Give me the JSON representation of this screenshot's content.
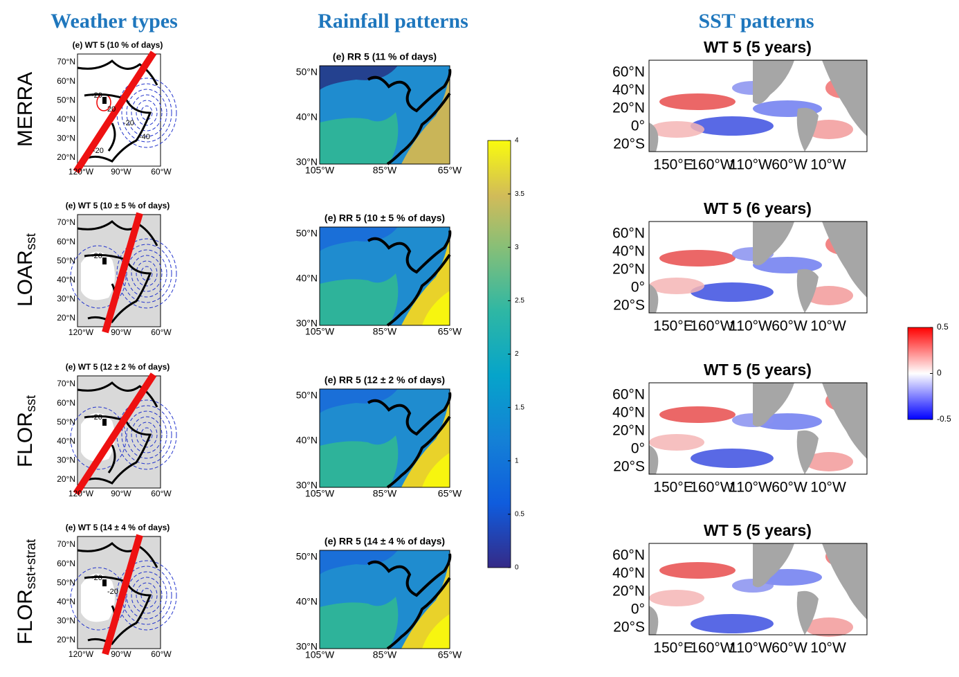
{
  "column_titles": [
    "Weather types",
    "Rainfall patterns",
    "SST patterns"
  ],
  "rows": [
    {
      "name": "MERRA"
    },
    {
      "name": "LOAR",
      "subscript": "sst"
    },
    {
      "name": "FLOR",
      "subscript": "sst"
    },
    {
      "name": "FLOR",
      "subscript": "sst+strat"
    }
  ],
  "weather_types": {
    "lat_labels": [
      "70°N",
      "60°N",
      "50°N",
      "40°N",
      "30°N",
      "20°N"
    ],
    "lon_labels": [
      "120°W",
      "90°W",
      "60°W"
    ],
    "panels": [
      {
        "title": "(e) WT 5  (10 % of days)",
        "contour_labels": [
          "-20",
          "20",
          "-20",
          "-40",
          "-20"
        ]
      },
      {
        "title": "(e) WT 5  (10 ± 5 % of days)",
        "contour_labels": [
          "-20"
        ]
      },
      {
        "title": "(e) WT 5  (12 ± 2 % of days)",
        "contour_labels": [
          "-20"
        ]
      },
      {
        "title": "(e) WT 5  (14 ± 4 % of days)",
        "contour_labels": [
          "-20",
          "-20"
        ]
      }
    ]
  },
  "rainfall": {
    "lat_labels": [
      "50°N",
      "40°N",
      "30°N"
    ],
    "lon_labels": [
      "105°W",
      "85°W",
      "65°W"
    ],
    "panels": [
      {
        "title": "(e) RR 5  (11 % of days)"
      },
      {
        "title": "(e) RR 5  (10 ± 5 % of days)"
      },
      {
        "title": "(e) RR 5  (12 ± 2 % of days)"
      },
      {
        "title": "(e) RR 5  (14 ± 4 % of days)"
      }
    ],
    "colorbar": {
      "lim": [
        0,
        4
      ],
      "ticks": [
        0,
        0.5,
        1,
        1.5,
        2,
        2.5,
        3,
        3.5,
        4
      ]
    }
  },
  "sst": {
    "lat_labels": [
      "60°N",
      "40°N",
      "20°N",
      "0°",
      "20°S"
    ],
    "lon_labels": [
      "150°E",
      "160°W",
      "110°W",
      "60°W",
      "10°W"
    ],
    "panels": [
      {
        "title": "WT 5  (5 years)"
      },
      {
        "title": "WT 5  (6 years)"
      },
      {
        "title": "WT 5  (5 years)"
      },
      {
        "title": "WT 5  (5 years)"
      }
    ],
    "colorbar": {
      "lim": [
        -0.5,
        0.5
      ],
      "ticks": [
        -0.5,
        0,
        0.5
      ]
    }
  }
}
